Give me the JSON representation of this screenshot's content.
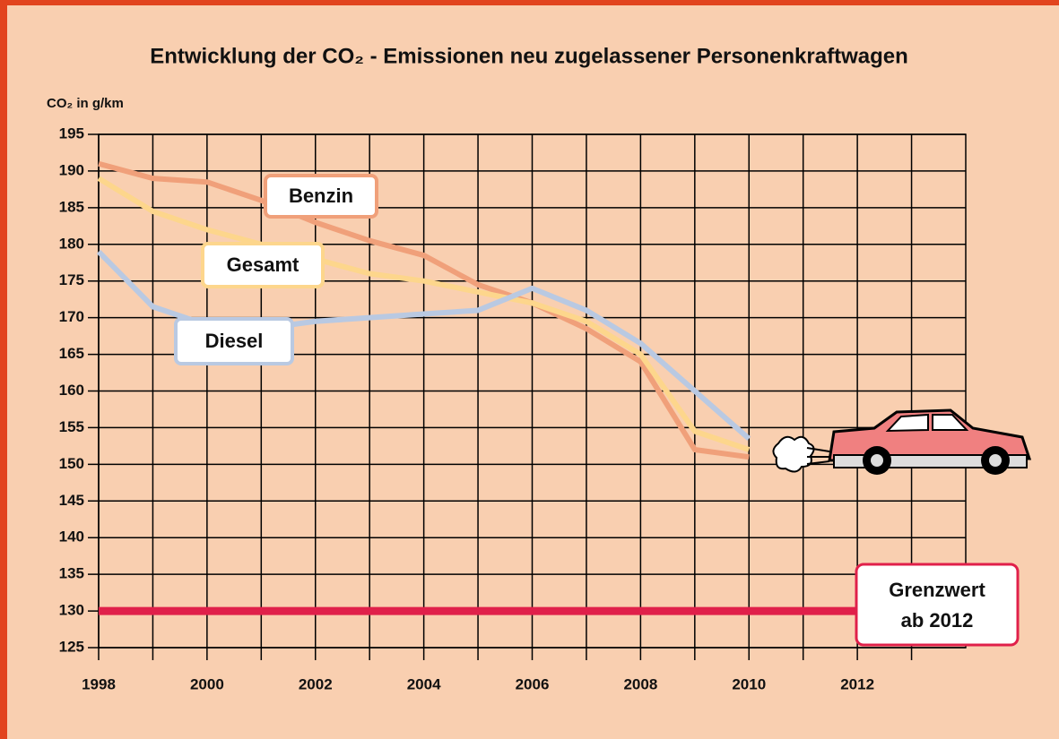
{
  "chart_data": {
    "type": "line",
    "title": "Entwicklung der CO₂ - Emissionen neu zugelassener Personenkraftwagen",
    "y_label": "CO₂ in g/km",
    "x": [
      1998,
      1999,
      2000,
      2001,
      2002,
      2003,
      2004,
      2005,
      2006,
      2007,
      2008,
      2009,
      2010
    ],
    "series": [
      {
        "name": "Benzin",
        "color": "#f0a07a",
        "values": [
          191,
          189,
          188.5,
          186,
          183,
          180.5,
          178.5,
          174.5,
          172,
          168.5,
          164,
          152,
          151
        ]
      },
      {
        "name": "Gesamt",
        "color": "#fdd68c",
        "values": [
          189,
          184.5,
          182,
          180,
          178,
          176,
          175,
          173.5,
          172,
          169.5,
          165,
          154.5,
          152
        ]
      },
      {
        "name": "Diesel",
        "color": "#b9c9e2",
        "values": [
          179,
          171.5,
          169,
          168.5,
          169.5,
          170,
          170.5,
          171,
          174,
          171,
          166.5,
          160,
          153.5
        ]
      }
    ],
    "limit": {
      "value": 130,
      "color": "#e0204a",
      "label": [
        "Grenzwert",
        "ab 2012"
      ]
    },
    "xlim": [
      1998,
      2014
    ],
    "xticks": [
      1998,
      2000,
      2002,
      2004,
      2006,
      2008,
      2010,
      2012
    ],
    "x_minor_grid": [
      1999,
      2001,
      2003,
      2005,
      2007,
      2009,
      2011,
      2013
    ],
    "ylim": [
      125,
      195
    ],
    "yticks": [
      125,
      130,
      135,
      140,
      145,
      150,
      155,
      160,
      165,
      170,
      175,
      180,
      185,
      190,
      195
    ],
    "grid": true
  }
}
